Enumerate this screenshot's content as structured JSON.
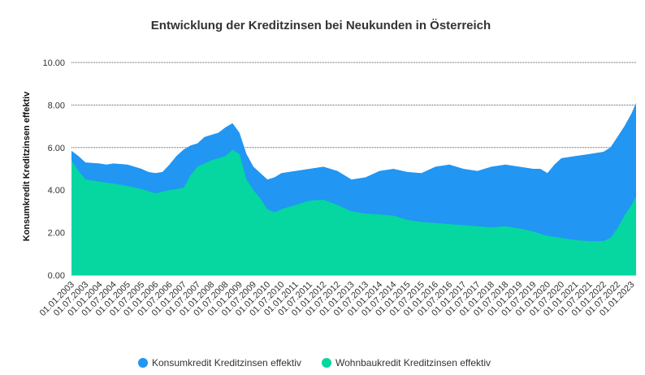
{
  "chart_data": {
    "type": "area",
    "title": "Entwicklung der Kreditzinsen bei Neukunden in Österreich",
    "xlabel": "",
    "ylabel": "Konsumkredit Kreditzinsen effektiv",
    "ylim": [
      0,
      10
    ],
    "yticks": [
      "0.00",
      "2.00",
      "4.00",
      "6.00",
      "8.00",
      "10.00"
    ],
    "grid": "horizontal",
    "legend_position": "bottom",
    "x_start": "2003-01",
    "x_end": "2023-03",
    "xtick_labels": [
      "01.01.2003",
      "01.07.2003",
      "01.01.2004",
      "01.07.2004",
      "01.01.2005",
      "01.07.2005",
      "01.01.2006",
      "01.07.2006",
      "01.01.2007",
      "01.07.2007",
      "01.01.2008",
      "01.07.2008",
      "01.01.2009",
      "01.07.2009",
      "01.01.2010",
      "01.07.2010",
      "01.01.2011",
      "01.07.2011",
      "01.01.2012",
      "01.07.2012",
      "01.01.2013",
      "01.07.2013",
      "01.01.2014",
      "01.07.2014",
      "01.01.2015",
      "01.07.2015",
      "01.01.2016",
      "01.07.2016",
      "01.01.2017",
      "01.07.2017",
      "01.01.2018",
      "01.07.2018",
      "01.01.2019",
      "01.07.2019",
      "01.01.2020",
      "01.07.2020",
      "01.01.2021",
      "01.07.2021",
      "01.01.2022",
      "01.07.2022",
      "01.01.2023"
    ],
    "series": [
      {
        "name": "Konsumkredit Kreditzinsen effektiv",
        "color": "#2196f3",
        "points": [
          [
            "2003-01",
            5.85
          ],
          [
            "2003-04",
            5.6
          ],
          [
            "2003-07",
            5.3
          ],
          [
            "2004-01",
            5.25
          ],
          [
            "2004-04",
            5.2
          ],
          [
            "2004-07",
            5.25
          ],
          [
            "2005-01",
            5.2
          ],
          [
            "2005-07",
            5.0
          ],
          [
            "2005-10",
            4.85
          ],
          [
            "2006-01",
            4.8
          ],
          [
            "2006-04",
            4.85
          ],
          [
            "2006-07",
            5.2
          ],
          [
            "2006-10",
            5.6
          ],
          [
            "2007-01",
            5.9
          ],
          [
            "2007-04",
            6.1
          ],
          [
            "2007-07",
            6.2
          ],
          [
            "2007-10",
            6.5
          ],
          [
            "2008-01",
            6.6
          ],
          [
            "2008-04",
            6.7
          ],
          [
            "2008-07",
            6.95
          ],
          [
            "2008-10",
            7.15
          ],
          [
            "2009-01",
            6.7
          ],
          [
            "2009-04",
            5.7
          ],
          [
            "2009-07",
            5.1
          ],
          [
            "2009-10",
            4.8
          ],
          [
            "2010-01",
            4.5
          ],
          [
            "2010-04",
            4.6
          ],
          [
            "2010-07",
            4.8
          ],
          [
            "2011-01",
            4.9
          ],
          [
            "2011-07",
            5.0
          ],
          [
            "2012-01",
            5.1
          ],
          [
            "2012-07",
            4.9
          ],
          [
            "2013-01",
            4.5
          ],
          [
            "2013-07",
            4.6
          ],
          [
            "2014-01",
            4.9
          ],
          [
            "2014-07",
            5.0
          ],
          [
            "2015-01",
            4.85
          ],
          [
            "2015-07",
            4.8
          ],
          [
            "2016-01",
            5.1
          ],
          [
            "2016-07",
            5.2
          ],
          [
            "2017-01",
            5.0
          ],
          [
            "2017-07",
            4.9
          ],
          [
            "2018-01",
            5.1
          ],
          [
            "2018-07",
            5.2
          ],
          [
            "2019-01",
            5.1
          ],
          [
            "2019-07",
            5.0
          ],
          [
            "2019-10",
            5.0
          ],
          [
            "2020-01",
            4.8
          ],
          [
            "2020-04",
            5.2
          ],
          [
            "2020-07",
            5.5
          ],
          [
            "2021-01",
            5.6
          ],
          [
            "2021-07",
            5.7
          ],
          [
            "2022-01",
            5.8
          ],
          [
            "2022-04",
            6.0
          ],
          [
            "2022-07",
            6.5
          ],
          [
            "2022-10",
            7.0
          ],
          [
            "2023-01",
            7.6
          ],
          [
            "2023-03",
            8.1
          ]
        ]
      },
      {
        "name": "Wohnbaukredit Kreditzinsen effektiv",
        "color": "#06d6a0",
        "points": [
          [
            "2003-01",
            5.4
          ],
          [
            "2003-04",
            4.9
          ],
          [
            "2003-07",
            4.5
          ],
          [
            "2004-01",
            4.4
          ],
          [
            "2004-07",
            4.3
          ],
          [
            "2005-01",
            4.2
          ],
          [
            "2005-07",
            4.05
          ],
          [
            "2006-01",
            3.85
          ],
          [
            "2006-07",
            4.0
          ],
          [
            "2007-01",
            4.1
          ],
          [
            "2007-04",
            4.7
          ],
          [
            "2007-07",
            5.1
          ],
          [
            "2008-01",
            5.4
          ],
          [
            "2008-07",
            5.6
          ],
          [
            "2008-10",
            5.9
          ],
          [
            "2009-01",
            5.7
          ],
          [
            "2009-04",
            4.5
          ],
          [
            "2009-07",
            4.0
          ],
          [
            "2009-10",
            3.6
          ],
          [
            "2010-01",
            3.1
          ],
          [
            "2010-04",
            2.95
          ],
          [
            "2010-07",
            3.1
          ],
          [
            "2011-01",
            3.3
          ],
          [
            "2011-07",
            3.5
          ],
          [
            "2012-01",
            3.55
          ],
          [
            "2012-07",
            3.3
          ],
          [
            "2013-01",
            3.0
          ],
          [
            "2013-07",
            2.9
          ],
          [
            "2014-01",
            2.85
          ],
          [
            "2014-07",
            2.8
          ],
          [
            "2015-01",
            2.6
          ],
          [
            "2015-07",
            2.5
          ],
          [
            "2016-01",
            2.45
          ],
          [
            "2016-07",
            2.4
          ],
          [
            "2017-01",
            2.35
          ],
          [
            "2017-07",
            2.3
          ],
          [
            "2018-01",
            2.25
          ],
          [
            "2018-07",
            2.3
          ],
          [
            "2019-01",
            2.2
          ],
          [
            "2019-07",
            2.05
          ],
          [
            "2020-01",
            1.85
          ],
          [
            "2020-07",
            1.75
          ],
          [
            "2021-01",
            1.65
          ],
          [
            "2021-07",
            1.6
          ],
          [
            "2022-01",
            1.6
          ],
          [
            "2022-04",
            1.75
          ],
          [
            "2022-07",
            2.2
          ],
          [
            "2022-10",
            2.8
          ],
          [
            "2023-01",
            3.3
          ],
          [
            "2023-03",
            3.7
          ]
        ]
      }
    ]
  }
}
